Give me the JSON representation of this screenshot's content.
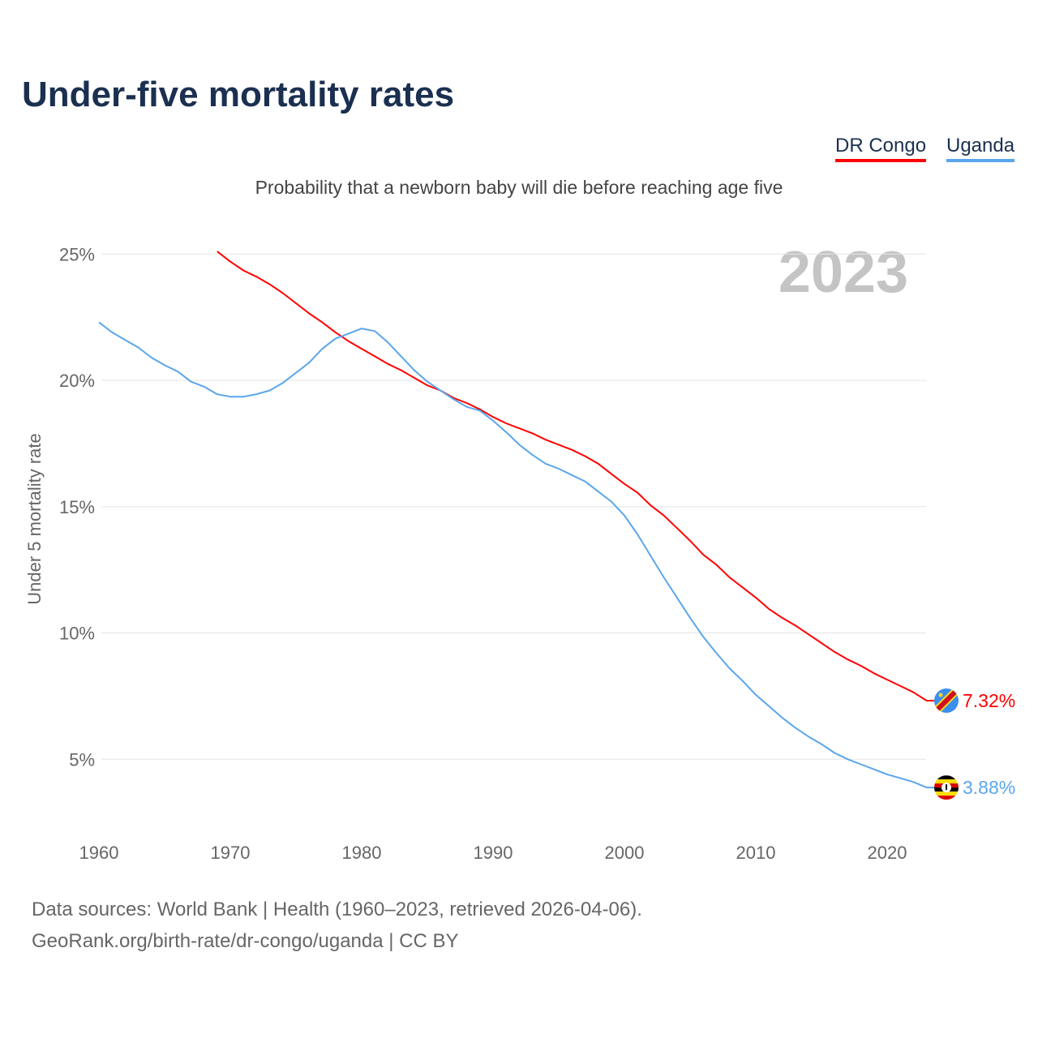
{
  "chart_data": {
    "type": "line",
    "title": "Under-five mortality rates",
    "subtitle": "Probability that a newborn baby will die before reaching age five",
    "ylabel": "Under 5 mortality rate",
    "xlabel": "",
    "year_watermark": "2023",
    "ylim": [
      0,
      26
    ],
    "xlim": [
      1960,
      2023
    ],
    "y_ticks": [
      {
        "v": 5,
        "label": "5%"
      },
      {
        "v": 10,
        "label": "10%"
      },
      {
        "v": 15,
        "label": "15%"
      },
      {
        "v": 20,
        "label": "20%"
      },
      {
        "v": 25,
        "label": "25%"
      }
    ],
    "x_ticks": [
      {
        "v": 1960,
        "label": "1960"
      },
      {
        "v": 1970,
        "label": "1970"
      },
      {
        "v": 1980,
        "label": "1980"
      },
      {
        "v": 1990,
        "label": "1990"
      },
      {
        "v": 2000,
        "label": "2000"
      },
      {
        "v": 2010,
        "label": "2010"
      },
      {
        "v": 2020,
        "label": "2020"
      }
    ],
    "grid": true,
    "legend_position": "top-right",
    "series": [
      {
        "name": "DR Congo",
        "color": "#ff0000",
        "end_label": "7.32%",
        "flag": "dr-congo-flag",
        "start_year": 1969,
        "values": [
          25.1,
          24.7,
          24.35,
          24.1,
          23.8,
          23.45,
          23.05,
          22.65,
          22.3,
          21.9,
          21.55,
          21.25,
          20.95,
          20.65,
          20.4,
          20.1,
          19.8,
          19.6,
          19.3,
          19.1,
          18.85,
          18.55,
          18.3,
          18.1,
          17.9,
          17.65,
          17.45,
          17.25,
          17.0,
          16.7,
          16.3,
          15.9,
          15.55,
          15.05,
          14.65,
          14.15,
          13.65,
          13.1,
          12.7,
          12.2,
          11.8,
          11.4,
          10.95,
          10.6,
          10.3,
          9.95,
          9.6,
          9.25,
          8.95,
          8.7,
          8.4,
          8.15,
          7.9,
          7.65,
          7.32
        ]
      },
      {
        "name": "Uganda",
        "color": "#5aa6ec",
        "end_label": "3.88%",
        "flag": "uganda-flag",
        "start_year": 1960,
        "values": [
          22.3,
          21.9,
          21.6,
          21.3,
          20.9,
          20.6,
          20.35,
          19.95,
          19.75,
          19.45,
          19.35,
          19.35,
          19.45,
          19.6,
          19.9,
          20.3,
          20.7,
          21.25,
          21.65,
          21.85,
          22.05,
          21.95,
          21.5,
          20.95,
          20.4,
          19.95,
          19.6,
          19.25,
          18.95,
          18.8,
          18.4,
          17.95,
          17.45,
          17.05,
          16.7,
          16.5,
          16.25,
          16.0,
          15.6,
          15.2,
          14.65,
          13.9,
          13.05,
          12.2,
          11.4,
          10.6,
          9.85,
          9.2,
          8.6,
          8.1,
          7.55,
          7.1,
          6.65,
          6.25,
          5.9,
          5.6,
          5.25,
          5.0,
          4.8,
          4.6,
          4.4,
          4.25,
          4.1,
          3.88
        ]
      }
    ]
  },
  "footer": {
    "source": "Data sources: World Bank | Health (1960–2023, retrieved 2026-04-06).",
    "credit": "GeoRank.org/birth-rate/dr-congo/uganda | CC BY"
  }
}
